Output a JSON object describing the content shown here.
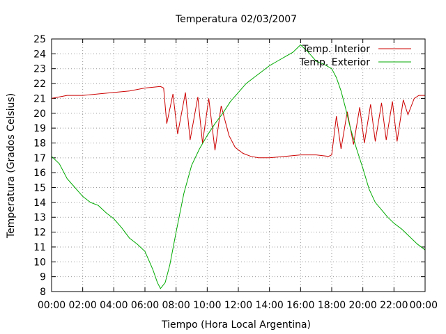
{
  "chart_data": {
    "type": "line",
    "title": "Temperatura 02/03/2007",
    "xlabel": "Tiempo (Hora Local Argentina)",
    "ylabel": "Temperatura (Grados Celsius)",
    "xlim": [
      0,
      24
    ],
    "ylim": [
      8,
      25
    ],
    "x_ticks": [
      "00:00",
      "02:00",
      "04:00",
      "06:00",
      "08:00",
      "10:00",
      "12:00",
      "14:00",
      "16:00",
      "18:00",
      "20:00",
      "22:00",
      "00:00"
    ],
    "y_ticks": [
      8,
      9,
      10,
      11,
      12,
      13,
      14,
      15,
      16,
      17,
      18,
      19,
      20,
      21,
      22,
      23,
      24,
      25
    ],
    "grid": true,
    "legend_position": "top-right",
    "series": [
      {
        "name": "Temp. Interior",
        "color": "#cc0000",
        "points": [
          [
            0,
            21.0
          ],
          [
            0.5,
            21.1
          ],
          [
            1,
            21.2
          ],
          [
            2,
            21.2
          ],
          [
            3,
            21.3
          ],
          [
            4,
            21.4
          ],
          [
            5,
            21.5
          ],
          [
            6,
            21.7
          ],
          [
            7.0,
            21.8
          ],
          [
            7.2,
            21.7
          ],
          [
            7.4,
            19.3
          ],
          [
            7.8,
            21.3
          ],
          [
            8.1,
            18.6
          ],
          [
            8.6,
            21.4
          ],
          [
            8.9,
            18.2
          ],
          [
            9.4,
            21.1
          ],
          [
            9.7,
            18.0
          ],
          [
            10.1,
            21.0
          ],
          [
            10.5,
            17.5
          ],
          [
            10.9,
            20.5
          ],
          [
            11.4,
            18.5
          ],
          [
            11.8,
            17.7
          ],
          [
            12.3,
            17.3
          ],
          [
            12.8,
            17.1
          ],
          [
            13.3,
            17.0
          ],
          [
            14,
            17.0
          ],
          [
            15,
            17.1
          ],
          [
            16,
            17.2
          ],
          [
            17,
            17.2
          ],
          [
            17.8,
            17.1
          ],
          [
            18.0,
            17.2
          ],
          [
            18.3,
            19.8
          ],
          [
            18.6,
            17.6
          ],
          [
            19.0,
            20.1
          ],
          [
            19.4,
            17.9
          ],
          [
            19.8,
            20.4
          ],
          [
            20.1,
            18.0
          ],
          [
            20.5,
            20.6
          ],
          [
            20.8,
            18.1
          ],
          [
            21.2,
            20.7
          ],
          [
            21.5,
            18.2
          ],
          [
            21.9,
            20.8
          ],
          [
            22.2,
            18.1
          ],
          [
            22.6,
            20.9
          ],
          [
            22.9,
            19.9
          ],
          [
            23.3,
            21.0
          ],
          [
            23.6,
            21.2
          ],
          [
            24,
            21.2
          ]
        ]
      },
      {
        "name": "Temp. Exterior",
        "color": "#00aa00",
        "points": [
          [
            0,
            17.1
          ],
          [
            0.5,
            16.6
          ],
          [
            1,
            15.6
          ],
          [
            1.5,
            15.0
          ],
          [
            2,
            14.4
          ],
          [
            2.5,
            14.0
          ],
          [
            3,
            13.8
          ],
          [
            3.5,
            13.3
          ],
          [
            4,
            12.9
          ],
          [
            4.5,
            12.3
          ],
          [
            5,
            11.6
          ],
          [
            5.5,
            11.2
          ],
          [
            6,
            10.7
          ],
          [
            6.5,
            9.5
          ],
          [
            6.8,
            8.6
          ],
          [
            7.0,
            8.2
          ],
          [
            7.3,
            8.6
          ],
          [
            7.6,
            9.8
          ],
          [
            8,
            12.0
          ],
          [
            8.5,
            14.6
          ],
          [
            9,
            16.5
          ],
          [
            9.5,
            17.6
          ],
          [
            10,
            18.5
          ],
          [
            10.5,
            19.3
          ],
          [
            11,
            20.0
          ],
          [
            11.5,
            20.8
          ],
          [
            12,
            21.4
          ],
          [
            12.5,
            22.0
          ],
          [
            13,
            22.4
          ],
          [
            13.5,
            22.8
          ],
          [
            14,
            23.2
          ],
          [
            14.5,
            23.5
          ],
          [
            15,
            23.8
          ],
          [
            15.5,
            24.1
          ],
          [
            16,
            24.6
          ],
          [
            16.5,
            24.1
          ],
          [
            17,
            23.5
          ],
          [
            17.5,
            23.3
          ],
          [
            18,
            23.0
          ],
          [
            18.3,
            22.4
          ],
          [
            18.6,
            21.5
          ],
          [
            18.9,
            20.3
          ],
          [
            19.2,
            19.0
          ],
          [
            19.6,
            17.6
          ],
          [
            20,
            16.3
          ],
          [
            20.4,
            14.9
          ],
          [
            20.8,
            14.0
          ],
          [
            21.2,
            13.5
          ],
          [
            21.6,
            13.0
          ],
          [
            22,
            12.6
          ],
          [
            22.5,
            12.2
          ],
          [
            23,
            11.7
          ],
          [
            23.5,
            11.2
          ],
          [
            24,
            10.8
          ]
        ]
      }
    ]
  }
}
